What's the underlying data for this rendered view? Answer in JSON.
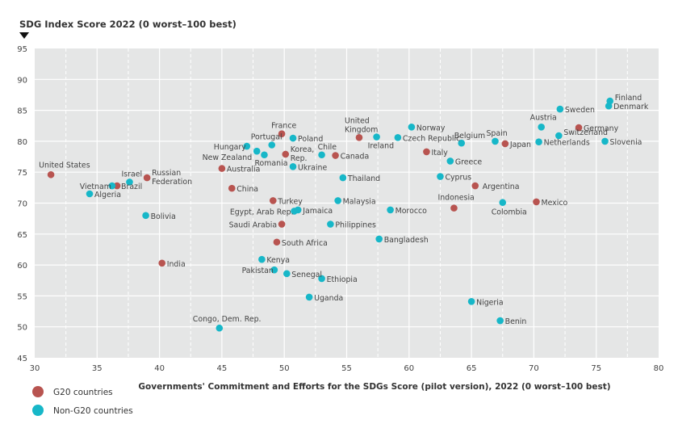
{
  "chart_data": {
    "type": "scatter",
    "title": "",
    "ylabel": "SDG Index Score 2022 (0 worst–100 best)",
    "xlabel": "Governments' Commitment and Efforts for the SDGs Score (pilot version), 2022 (0 worst–100 best)",
    "xlim": [
      30,
      80
    ],
    "ylim": [
      45,
      95
    ],
    "xticks": [
      "30",
      "35",
      "40",
      "45",
      "50",
      "55",
      "60",
      "65",
      "70",
      "75",
      "80"
    ],
    "yticks": [
      "45",
      "50",
      "55",
      "60",
      "65",
      "70",
      "75",
      "80",
      "85",
      "90",
      "95"
    ],
    "grid": true,
    "legend_position": "bottom-left",
    "series": [
      {
        "name": "G20 countries",
        "color": "#b85450",
        "points": [
          {
            "label": "United States",
            "x": 31.3,
            "y": 74.6
          },
          {
            "label": "Brazil",
            "x": 36.6,
            "y": 72.8
          },
          {
            "label": "Russian Federation",
            "x": 39.0,
            "y": 74.1
          },
          {
            "label": "India",
            "x": 40.2,
            "y": 60.3
          },
          {
            "label": "Australia",
            "x": 45.0,
            "y": 75.6
          },
          {
            "label": "China",
            "x": 45.8,
            "y": 72.4
          },
          {
            "label": "France",
            "x": 49.8,
            "y": 81.2
          },
          {
            "label": "Korea, Rep.",
            "x": 50.1,
            "y": 77.9
          },
          {
            "label": "Canada",
            "x": 54.1,
            "y": 77.7
          },
          {
            "label": "United Kingdom",
            "x": 56.0,
            "y": 80.6
          },
          {
            "label": "Turkey",
            "x": 49.1,
            "y": 70.4
          },
          {
            "label": "Saudi Arabia",
            "x": 49.8,
            "y": 66.6
          },
          {
            "label": "South Africa",
            "x": 49.4,
            "y": 63.7
          },
          {
            "label": "Italy",
            "x": 61.4,
            "y": 78.3
          },
          {
            "label": "Japan",
            "x": 67.7,
            "y": 79.6
          },
          {
            "label": "Argentina",
            "x": 65.3,
            "y": 72.8
          },
          {
            "label": "Indonesia",
            "x": 63.6,
            "y": 69.2
          },
          {
            "label": "Mexico",
            "x": 70.2,
            "y": 70.2
          },
          {
            "label": "Germany",
            "x": 73.6,
            "y": 82.2
          }
        ]
      },
      {
        "name": "Non-G20 countries",
        "color": "#17b7c8",
        "points": [
          {
            "label": "Vietnam",
            "x": 36.2,
            "y": 72.8
          },
          {
            "label": "Israel",
            "x": 37.6,
            "y": 73.4
          },
          {
            "label": "Algeria",
            "x": 34.4,
            "y": 71.5
          },
          {
            "label": "Bolivia",
            "x": 38.9,
            "y": 68.0
          },
          {
            "label": "Hungary",
            "x": 47.0,
            "y": 79.2
          },
          {
            "label": "New Zealand",
            "x": 47.8,
            "y": 78.4
          },
          {
            "label": "Portugal",
            "x": 49.0,
            "y": 79.4
          },
          {
            "label": "Romania",
            "x": 48.4,
            "y": 77.8
          },
          {
            "label": "Poland",
            "x": 50.7,
            "y": 80.5
          },
          {
            "label": "Ukraine",
            "x": 50.7,
            "y": 75.9
          },
          {
            "label": "Chile",
            "x": 53.0,
            "y": 77.8
          },
          {
            "label": "Thailand",
            "x": 54.7,
            "y": 74.1
          },
          {
            "label": "Malaysia",
            "x": 54.3,
            "y": 70.4
          },
          {
            "label": "Egypt, Arab Rep.",
            "x": 50.8,
            "y": 68.7
          },
          {
            "label": "Jamaica",
            "x": 51.1,
            "y": 68.9
          },
          {
            "label": "Philippines",
            "x": 53.7,
            "y": 66.6
          },
          {
            "label": "Morocco",
            "x": 58.5,
            "y": 68.9
          },
          {
            "label": "Bangladesh",
            "x": 57.6,
            "y": 64.2
          },
          {
            "label": "Kenya",
            "x": 48.2,
            "y": 60.9
          },
          {
            "label": "Pakistan",
            "x": 49.2,
            "y": 59.2
          },
          {
            "label": "Senegal",
            "x": 50.2,
            "y": 58.6
          },
          {
            "label": "Ethiopia",
            "x": 53.0,
            "y": 57.8
          },
          {
            "label": "Uganda",
            "x": 52.0,
            "y": 54.8
          },
          {
            "label": "Congo, Dem. Rep.",
            "x": 44.8,
            "y": 49.8
          },
          {
            "label": "Ireland",
            "x": 57.4,
            "y": 80.7
          },
          {
            "label": "Norway",
            "x": 60.2,
            "y": 82.3
          },
          {
            "label": "Czech Republic",
            "x": 59.1,
            "y": 80.6
          },
          {
            "label": "Belgium",
            "x": 64.2,
            "y": 79.7
          },
          {
            "label": "Spain",
            "x": 66.9,
            "y": 80.0
          },
          {
            "label": "Greece",
            "x": 63.3,
            "y": 76.8
          },
          {
            "label": "Cyprus",
            "x": 62.5,
            "y": 74.3
          },
          {
            "label": "Colombia",
            "x": 67.5,
            "y": 70.1
          },
          {
            "label": "Nigeria",
            "x": 65.0,
            "y": 54.1
          },
          {
            "label": "Benin",
            "x": 67.3,
            "y": 51.0
          },
          {
            "label": "Austria",
            "x": 70.6,
            "y": 82.3
          },
          {
            "label": "Netherlands",
            "x": 70.4,
            "y": 79.9
          },
          {
            "label": "Switzerland",
            "x": 72.0,
            "y": 80.9
          },
          {
            "label": "Sweden",
            "x": 72.1,
            "y": 85.2
          },
          {
            "label": "Slovenia",
            "x": 75.7,
            "y": 80.0
          },
          {
            "label": "Finland",
            "x": 76.1,
            "y": 86.5
          },
          {
            "label": "Denmark",
            "x": 76.0,
            "y": 85.7
          }
        ]
      }
    ]
  }
}
